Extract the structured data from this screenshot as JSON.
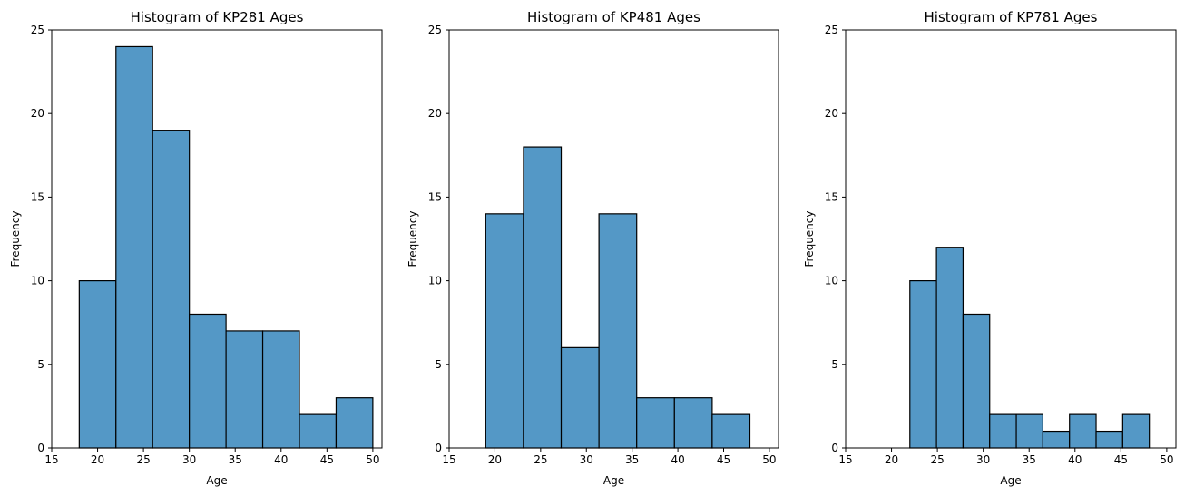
{
  "chart_data": [
    {
      "type": "bar",
      "title": "Histogram of KP281 Ages",
      "xlabel": "Age",
      "ylabel": "Frequency",
      "xlim": [
        15,
        51
      ],
      "ylim": [
        0,
        25
      ],
      "xticks": [
        15,
        20,
        25,
        30,
        35,
        40,
        45,
        50
      ],
      "yticks": [
        0,
        5,
        10,
        15,
        20,
        25
      ],
      "bin_edges": [
        18,
        22,
        26,
        30,
        34,
        38,
        42,
        46,
        50
      ],
      "values": [
        10,
        24,
        19,
        8,
        7,
        7,
        2,
        3
      ],
      "color": "#5498c6",
      "edge_color": "#000000"
    },
    {
      "type": "bar",
      "title": "Histogram of KP481 Ages",
      "xlabel": "Age",
      "ylabel": "Frequency",
      "xlim": [
        15,
        51
      ],
      "ylim": [
        0,
        25
      ],
      "xticks": [
        15,
        20,
        25,
        30,
        35,
        40,
        45,
        50
      ],
      "yticks": [
        0,
        5,
        10,
        15,
        20,
        25
      ],
      "bin_edges": [
        19,
        23.125,
        27.25,
        31.375,
        35.5,
        39.625,
        43.75,
        47.875
      ],
      "values": [
        14,
        18,
        6,
        14,
        3,
        3,
        2
      ],
      "color": "#5498c6",
      "edge_color": "#000000"
    },
    {
      "type": "bar",
      "title": "Histogram of KP781 Ages",
      "xlabel": "Age",
      "ylabel": "Frequency",
      "xlim": [
        15,
        51
      ],
      "ylim": [
        0,
        25
      ],
      "xticks": [
        15,
        20,
        25,
        30,
        35,
        40,
        45,
        50
      ],
      "yticks": [
        0,
        5,
        10,
        15,
        20,
        25
      ],
      "bin_edges": [
        22,
        24.9,
        27.8,
        30.7,
        33.6,
        36.5,
        39.4,
        42.3,
        45.2,
        48.1
      ],
      "values": [
        10,
        12,
        8,
        2,
        2,
        1,
        2,
        1,
        2
      ],
      "color": "#5498c6",
      "edge_color": "#000000"
    }
  ]
}
